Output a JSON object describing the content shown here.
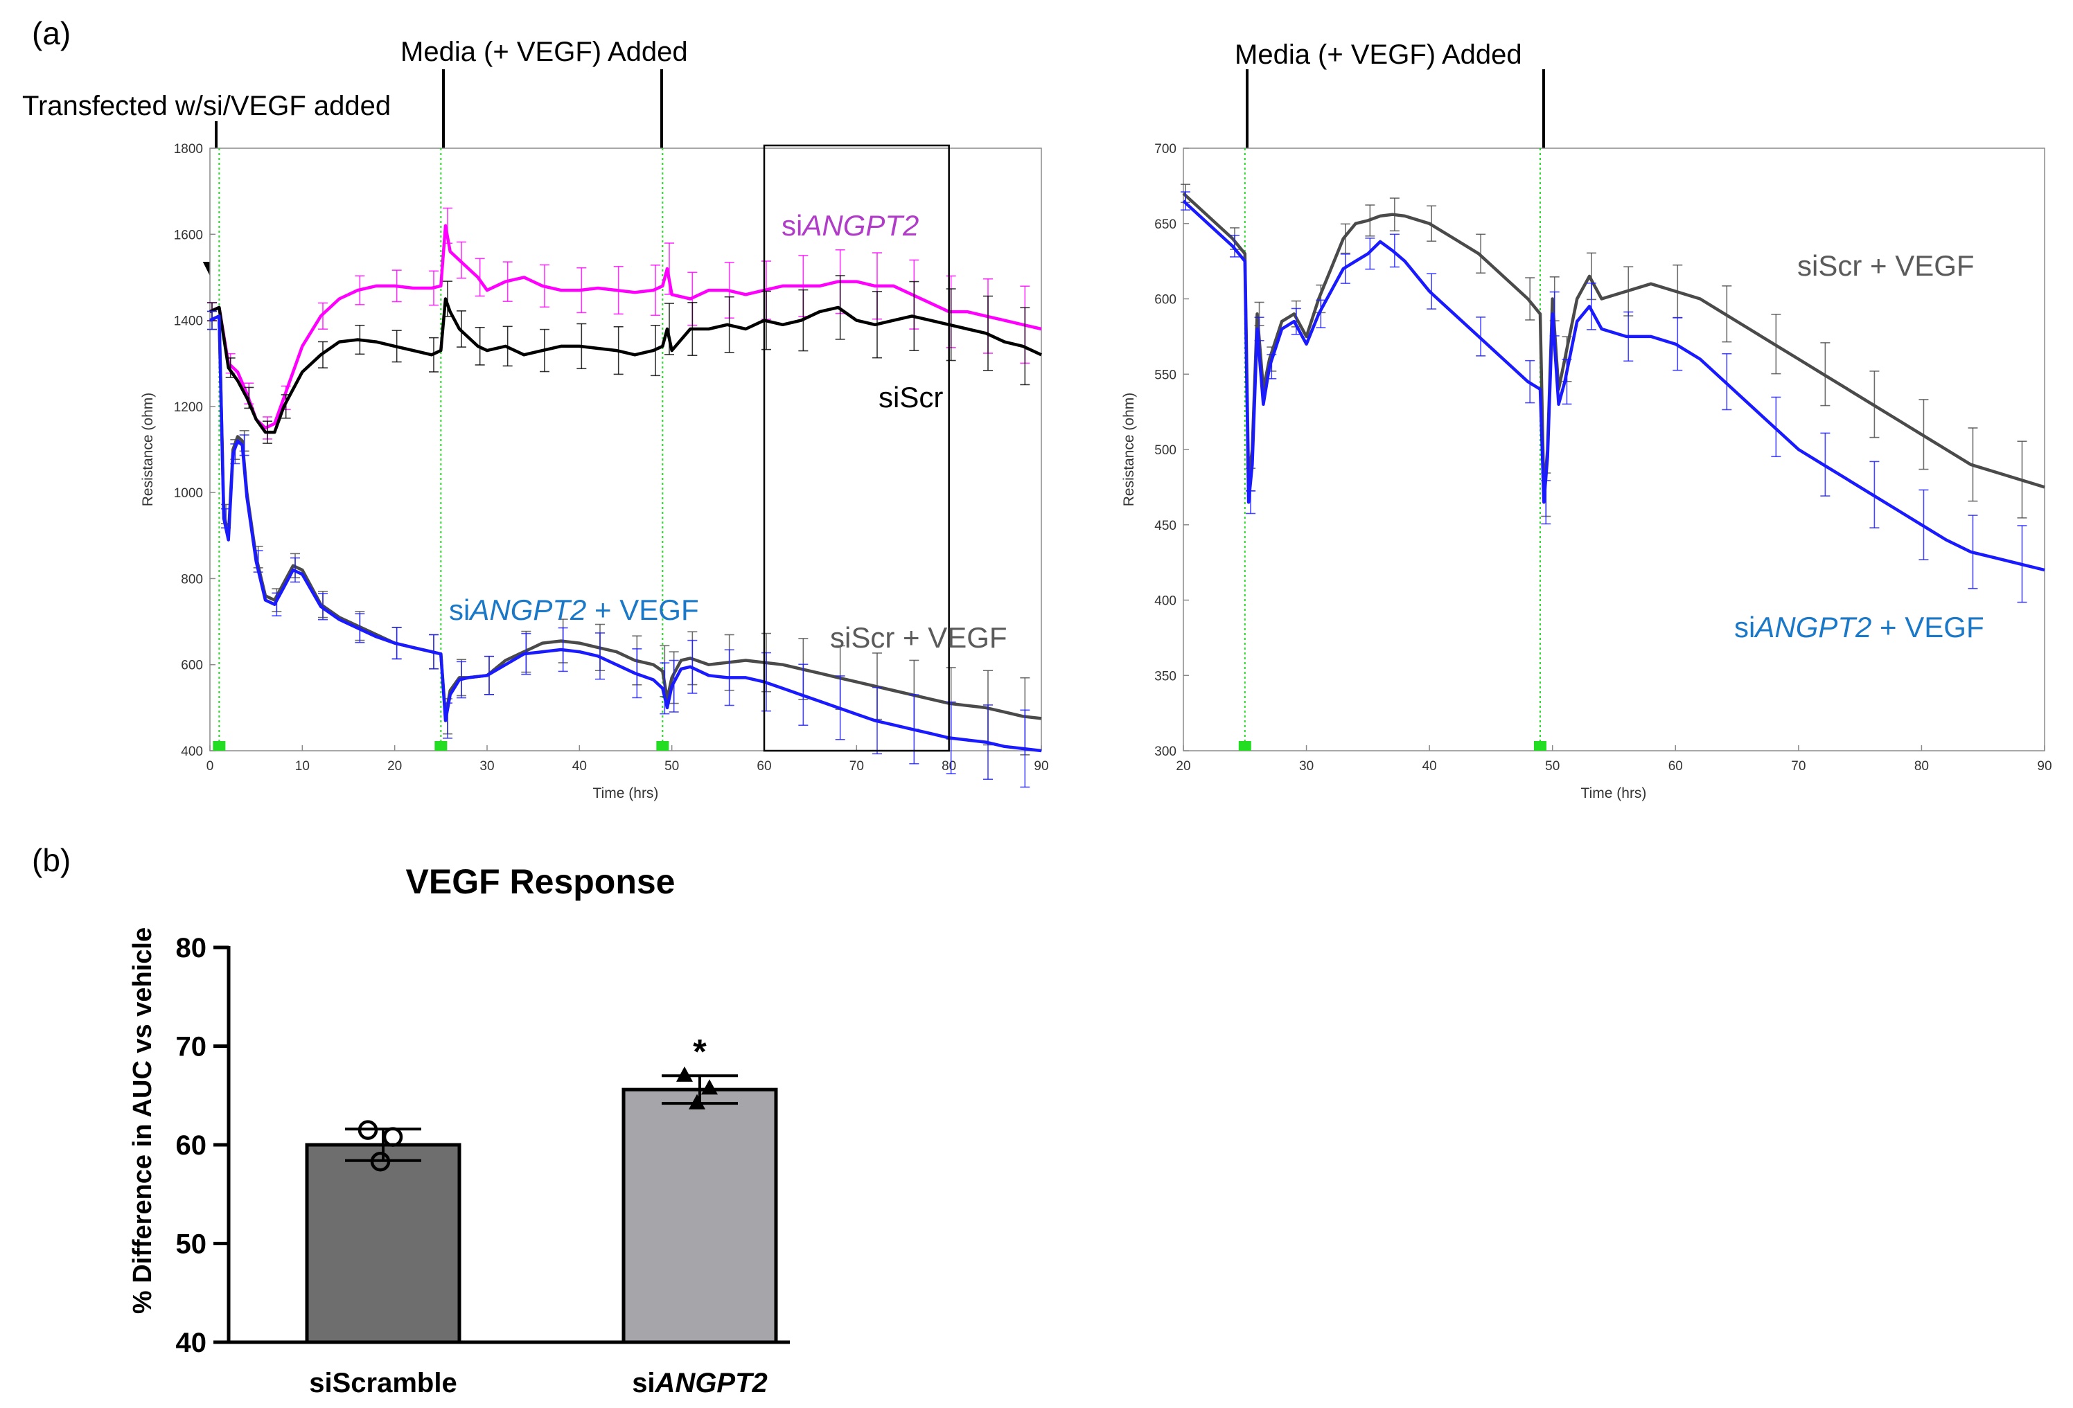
{
  "panel_labels": {
    "a": "(a)",
    "b": "(b)"
  },
  "annotations": {
    "transfected": "Transfected w/si/VEGF added",
    "media_added": "Media (+ VEGF) Added"
  },
  "colors": {
    "siANGPT2": "#ff00ff",
    "siANGPT2_label": "#b03cc8",
    "siScr": "#000000",
    "siScr_VEGF": "#4a4a4a",
    "siScr_VEGF_label": "#5a5a5a",
    "siANGPT2_VEGF": "#1a1aff",
    "siANGPT2_VEGF_label": "#1a78c8",
    "marker_green": "#22dd22",
    "bar_siScramble": "#6e6e6e",
    "bar_siANGPT2": "#a5a5aa"
  },
  "chart_data": [
    {
      "id": "a-left",
      "type": "line",
      "xlabel": "Time (hrs)",
      "ylabel": "Resistance (ohm)",
      "xlim": [
        0,
        90
      ],
      "ylim": [
        400,
        1800
      ],
      "xticks": [
        "0",
        "10",
        "20",
        "30",
        "40",
        "50",
        "60",
        "70",
        "80",
        "90"
      ],
      "yticks": [
        "400",
        "600",
        "800",
        "1000",
        "1200",
        "1400",
        "1600",
        "1800"
      ],
      "highlight_box_x": [
        60,
        80
      ],
      "event_times": [
        1,
        25,
        49
      ],
      "series": [
        {
          "name_prefix": "si",
          "name_italic": "ANGPT2",
          "name_suffix": "",
          "color_key": "siANGPT2",
          "x": [
            0,
            1,
            2,
            3,
            4,
            5,
            6,
            7,
            8,
            10,
            12,
            14,
            16,
            18,
            20,
            22,
            24,
            25,
            25.5,
            26,
            27,
            28,
            29,
            30,
            32,
            34,
            36,
            38,
            40,
            42,
            44,
            46,
            48,
            49,
            49.5,
            50,
            52,
            54,
            56,
            58,
            60,
            62,
            64,
            66,
            68,
            70,
            72,
            74,
            76,
            78,
            80,
            82,
            84,
            86,
            88,
            90
          ],
          "y": [
            1420,
            1430,
            1300,
            1280,
            1230,
            1170,
            1150,
            1160,
            1220,
            1340,
            1410,
            1450,
            1470,
            1480,
            1480,
            1475,
            1475,
            1480,
            1620,
            1560,
            1540,
            1520,
            1500,
            1470,
            1490,
            1500,
            1480,
            1470,
            1470,
            1475,
            1470,
            1465,
            1470,
            1480,
            1520,
            1460,
            1450,
            1470,
            1470,
            1460,
            1470,
            1480,
            1480,
            1480,
            1490,
            1490,
            1480,
            1480,
            1460,
            1440,
            1420,
            1420,
            1410,
            1400,
            1390,
            1380
          ]
        },
        {
          "name_prefix": "siScr",
          "name_italic": "",
          "name_suffix": "",
          "color_key": "siScr",
          "x": [
            0,
            1,
            2,
            3,
            4,
            5,
            6,
            7,
            8,
            10,
            12,
            14,
            16,
            18,
            20,
            22,
            24,
            25,
            25.5,
            26,
            27,
            28,
            29,
            30,
            32,
            34,
            36,
            38,
            40,
            42,
            44,
            46,
            48,
            49,
            49.5,
            50,
            52,
            54,
            56,
            58,
            60,
            62,
            64,
            66,
            68,
            70,
            72,
            74,
            76,
            78,
            80,
            82,
            84,
            86,
            88,
            90
          ],
          "y": [
            1420,
            1430,
            1290,
            1260,
            1220,
            1170,
            1140,
            1140,
            1200,
            1280,
            1320,
            1350,
            1355,
            1350,
            1340,
            1330,
            1320,
            1330,
            1450,
            1420,
            1380,
            1360,
            1340,
            1330,
            1340,
            1320,
            1330,
            1340,
            1340,
            1335,
            1330,
            1320,
            1330,
            1340,
            1380,
            1330,
            1380,
            1380,
            1390,
            1380,
            1400,
            1390,
            1400,
            1420,
            1430,
            1400,
            1390,
            1400,
            1410,
            1400,
            1390,
            1380,
            1370,
            1350,
            1340,
            1320
          ]
        },
        {
          "name_prefix": "siScr + VEGF",
          "name_italic": "",
          "name_suffix": "",
          "color_key": "siScr_VEGF",
          "x": [
            0,
            1,
            1.5,
            2,
            2.5,
            3,
            3.5,
            4,
            5,
            6,
            7,
            8,
            9,
            10,
            12,
            14,
            16,
            18,
            20,
            22,
            24,
            25,
            25.5,
            26,
            27,
            28,
            30,
            32,
            34,
            36,
            38,
            40,
            42,
            44,
            46,
            48,
            49,
            49.5,
            50,
            51,
            52,
            54,
            56,
            58,
            60,
            62,
            64,
            66,
            68,
            70,
            72,
            74,
            76,
            78,
            80,
            82,
            84,
            86,
            88,
            90
          ],
          "y": [
            1400,
            1410,
            950,
            900,
            1100,
            1130,
            1120,
            1000,
            850,
            760,
            750,
            790,
            830,
            820,
            740,
            710,
            690,
            670,
            650,
            640,
            630,
            625,
            480,
            540,
            570,
            570,
            575,
            610,
            630,
            650,
            655,
            650,
            640,
            630,
            610,
            600,
            585,
            520,
            570,
            610,
            615,
            600,
            605,
            610,
            605,
            600,
            590,
            580,
            570,
            560,
            550,
            540,
            530,
            520,
            510,
            505,
            500,
            490,
            480,
            475
          ]
        },
        {
          "name_prefix": "si",
          "name_italic": "ANGPT2",
          "name_suffix": " + VEGF",
          "color_key": "siANGPT2_VEGF",
          "x": [
            0,
            1,
            1.5,
            2,
            2.5,
            3,
            3.5,
            4,
            5,
            6,
            7,
            8,
            9,
            10,
            12,
            14,
            16,
            18,
            20,
            22,
            24,
            25,
            25.5,
            26,
            27,
            28,
            30,
            32,
            34,
            36,
            38,
            40,
            42,
            44,
            46,
            48,
            49,
            49.5,
            50,
            51,
            52,
            54,
            56,
            58,
            60,
            62,
            64,
            66,
            68,
            70,
            72,
            74,
            76,
            78,
            80,
            82,
            84,
            86,
            88,
            90
          ],
          "y": [
            1400,
            1410,
            940,
            890,
            1090,
            1120,
            1110,
            990,
            840,
            750,
            740,
            780,
            820,
            810,
            735,
            705,
            685,
            665,
            650,
            640,
            630,
            625,
            470,
            530,
            565,
            570,
            575,
            600,
            625,
            630,
            635,
            630,
            620,
            600,
            580,
            565,
            545,
            500,
            550,
            590,
            595,
            575,
            570,
            570,
            560,
            545,
            530,
            515,
            500,
            485,
            470,
            460,
            450,
            440,
            430,
            425,
            420,
            410,
            405,
            400
          ]
        }
      ]
    },
    {
      "id": "a-right",
      "type": "line",
      "xlabel": "Time (hrs)",
      "ylabel": "Resistance (ohm)",
      "xlim": [
        20,
        90
      ],
      "ylim": [
        300,
        700
      ],
      "xticks": [
        "20",
        "30",
        "40",
        "50",
        "60",
        "70",
        "80",
        "90"
      ],
      "yticks": [
        "300",
        "350",
        "400",
        "450",
        "500",
        "550",
        "600",
        "650",
        "700"
      ],
      "event_times": [
        25,
        49
      ],
      "series": [
        {
          "name_prefix": "siScr + VEGF",
          "name_italic": "",
          "name_suffix": "",
          "color_key": "siScr_VEGF",
          "x": [
            20,
            22,
            24,
            25,
            25.3,
            25.6,
            26,
            26.5,
            27,
            28,
            29,
            30,
            31,
            32,
            33,
            34,
            35,
            36,
            37,
            38,
            40,
            42,
            44,
            46,
            48,
            49,
            49.3,
            49.6,
            50,
            50.5,
            51,
            52,
            53,
            54,
            56,
            58,
            60,
            62,
            64,
            66,
            68,
            70,
            72,
            74,
            76,
            78,
            80,
            82,
            84,
            86,
            88,
            90
          ],
          "y": [
            670,
            655,
            640,
            630,
            480,
            500,
            590,
            540,
            560,
            585,
            590,
            575,
            600,
            620,
            640,
            650,
            652,
            655,
            656,
            655,
            650,
            640,
            630,
            615,
            600,
            590,
            470,
            500,
            600,
            540,
            560,
            600,
            615,
            600,
            605,
            610,
            605,
            600,
            590,
            580,
            570,
            560,
            550,
            540,
            530,
            520,
            510,
            500,
            490,
            485,
            480,
            475
          ]
        },
        {
          "name_prefix": "si",
          "name_italic": "ANGPT2",
          "name_suffix": " + VEGF",
          "color_key": "siANGPT2_VEGF",
          "x": [
            20,
            22,
            24,
            25,
            25.3,
            25.6,
            26,
            26.5,
            27,
            28,
            29,
            30,
            31,
            32,
            33,
            34,
            35,
            36,
            37,
            38,
            40,
            42,
            44,
            46,
            48,
            49,
            49.3,
            49.6,
            50,
            50.5,
            51,
            52,
            53,
            54,
            56,
            58,
            60,
            62,
            64,
            66,
            68,
            70,
            72,
            74,
            76,
            78,
            80,
            82,
            84,
            86,
            88,
            90
          ],
          "y": [
            665,
            650,
            635,
            625,
            465,
            490,
            580,
            530,
            555,
            580,
            585,
            570,
            590,
            605,
            620,
            625,
            630,
            638,
            632,
            625,
            605,
            590,
            575,
            560,
            545,
            540,
            465,
            495,
            590,
            530,
            545,
            585,
            595,
            580,
            575,
            575,
            570,
            560,
            545,
            530,
            515,
            500,
            490,
            480,
            470,
            460,
            450,
            440,
            432,
            428,
            424,
            420
          ]
        }
      ],
      "label_lines": {
        "top": "siScr + VEGF",
        "bottom_prefix": "si",
        "bottom_italic": "ANGPT2",
        "bottom_suffix": " + VEGF"
      }
    },
    {
      "id": "b",
      "type": "bar",
      "title": "VEGF Response",
      "xlabel": "",
      "ylabel": "% Difference in AUC vs vehicle",
      "ylim": [
        40,
        80
      ],
      "yticks": [
        "40",
        "50",
        "60",
        "70",
        "80"
      ],
      "categories": [
        "siScramble",
        "siANGPT2"
      ],
      "category_parts": [
        {
          "prefix": "siScramble",
          "italic": ""
        },
        {
          "prefix": "si",
          "italic": "ANGPT2"
        }
      ],
      "values": [
        60.0,
        65.6
      ],
      "errors": [
        1.6,
        1.4
      ],
      "points": [
        [
          61.5,
          60.8,
          58.3
        ],
        [
          67.1,
          65.8,
          64.3
        ]
      ],
      "point_markers": [
        "circle",
        "triangle"
      ],
      "significance": [
        "",
        "*"
      ]
    }
  ]
}
